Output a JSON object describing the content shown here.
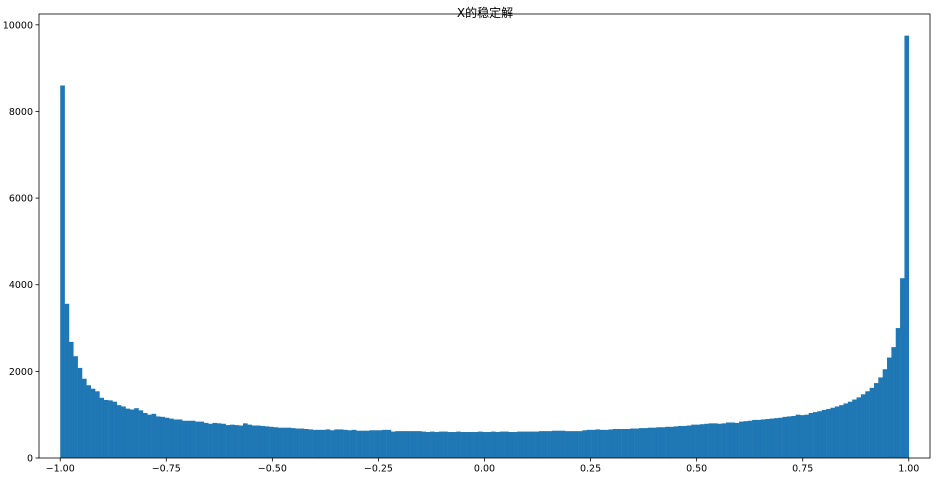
{
  "chart_data": {
    "type": "bar",
    "title": "X的稳定解",
    "xlabel": "",
    "ylabel": "",
    "xlim": [
      -1.05,
      1.05
    ],
    "ylim": [
      0,
      10250
    ],
    "bar_color": "#1f77b4",
    "grid": false,
    "legend": "none",
    "x_ticks": [
      {
        "value": -1.0,
        "label": "−1.00"
      },
      {
        "value": -0.75,
        "label": "−0.75"
      },
      {
        "value": -0.5,
        "label": "−0.50"
      },
      {
        "value": -0.25,
        "label": "−0.25"
      },
      {
        "value": 0.0,
        "label": "0.00"
      },
      {
        "value": 0.25,
        "label": "0.25"
      },
      {
        "value": 0.5,
        "label": "0.50"
      },
      {
        "value": 0.75,
        "label": "0.75"
      },
      {
        "value": 1.0,
        "label": "1.00"
      }
    ],
    "y_ticks": [
      {
        "value": 0,
        "label": "0"
      },
      {
        "value": 2000,
        "label": "2000"
      },
      {
        "value": 4000,
        "label": "4000"
      },
      {
        "value": 6000,
        "label": "6000"
      },
      {
        "value": 8000,
        "label": "8000"
      },
      {
        "value": 10000,
        "label": "10000"
      }
    ],
    "bin_range": [
      -1.0,
      1.0
    ],
    "values": [
      8600,
      3560,
      2680,
      2350,
      2080,
      1830,
      1680,
      1600,
      1540,
      1390,
      1340,
      1330,
      1300,
      1220,
      1190,
      1140,
      1120,
      1150,
      1100,
      1040,
      1000,
      1020,
      960,
      950,
      930,
      910,
      890,
      890,
      860,
      860,
      860,
      840,
      840,
      810,
      790,
      810,
      800,
      790,
      760,
      770,
      760,
      750,
      800,
      770,
      750,
      750,
      740,
      730,
      720,
      710,
      700,
      700,
      700,
      690,
      680,
      680,
      670,
      660,
      650,
      650,
      650,
      660,
      640,
      660,
      660,
      650,
      640,
      650,
      630,
      630,
      630,
      640,
      640,
      640,
      650,
      650,
      610,
      620,
      620,
      620,
      620,
      620,
      620,
      610,
      600,
      610,
      600,
      610,
      610,
      600,
      600,
      610,
      600,
      600,
      600,
      600,
      610,
      600,
      600,
      610,
      600,
      610,
      610,
      600,
      600,
      610,
      610,
      610,
      610,
      610,
      620,
      620,
      620,
      630,
      630,
      630,
      620,
      620,
      620,
      620,
      640,
      650,
      650,
      660,
      650,
      650,
      660,
      670,
      670,
      670,
      670,
      680,
      680,
      690,
      690,
      700,
      700,
      710,
      710,
      720,
      720,
      730,
      740,
      740,
      750,
      770,
      770,
      780,
      790,
      800,
      800,
      790,
      800,
      820,
      820,
      810,
      840,
      850,
      860,
      880,
      880,
      890,
      900,
      910,
      920,
      930,
      950,
      960,
      970,
      1000,
      990,
      1000,
      1040,
      1060,
      1080,
      1110,
      1130,
      1160,
      1190,
      1220,
      1260,
      1300,
      1350,
      1400,
      1470,
      1540,
      1620,
      1730,
      1860,
      2050,
      2320,
      2560,
      3000,
      4150,
      9750
    ]
  }
}
